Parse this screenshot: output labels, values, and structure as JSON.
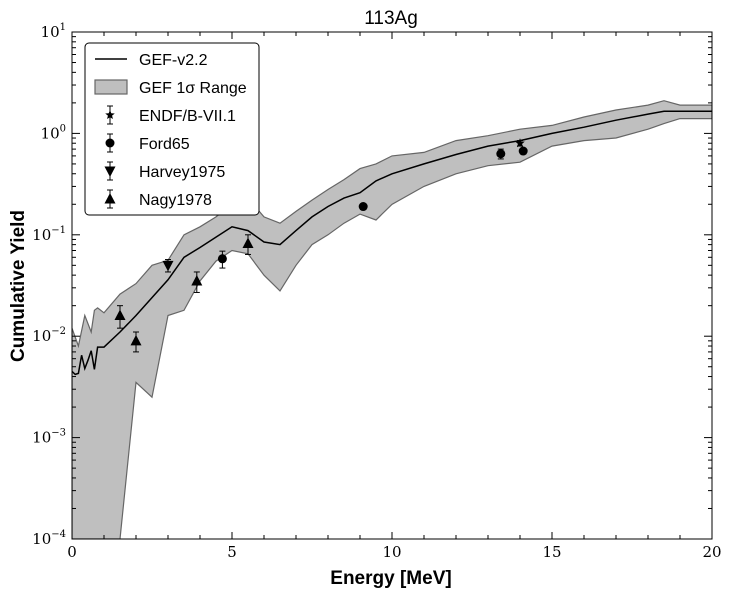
{
  "chart_data": {
    "type": "line",
    "title": "113Ag",
    "xlabel": "Energy [MeV]",
    "ylabel": "Cumulative Yield",
    "xlim": [
      0,
      20
    ],
    "ylim": [
      0.0001,
      10
    ],
    "yscale": "log",
    "grid": false,
    "legend_position": "top-left",
    "x_ticks": [
      0,
      5,
      10,
      15,
      20
    ],
    "y_ticks": [
      {
        "value": 0.0001,
        "base": "10",
        "exp": "−4"
      },
      {
        "value": 0.001,
        "base": "10",
        "exp": "−3"
      },
      {
        "value": 0.01,
        "base": "10",
        "exp": "−2"
      },
      {
        "value": 0.1,
        "base": "10",
        "exp": "−1"
      },
      {
        "value": 1,
        "base": "10",
        "exp": "0"
      },
      {
        "value": 10,
        "base": "10",
        "exp": "1"
      }
    ],
    "legend": [
      {
        "key": "gef",
        "label": "GEF-v2.2",
        "kind": "line"
      },
      {
        "key": "band",
        "label": "GEF 1σ Range",
        "kind": "band"
      },
      {
        "key": "endf",
        "label": "ENDF/B-VII.1",
        "kind": "star"
      },
      {
        "key": "ford",
        "label": "Ford65",
        "kind": "circle"
      },
      {
        "key": "harvey",
        "label": "Harvey1975",
        "kind": "tri-down"
      },
      {
        "key": "nagy",
        "label": "Nagy1978",
        "kind": "tri-up"
      }
    ],
    "series": [
      {
        "name": "GEF-v2.2",
        "kind": "line",
        "x": [
          0,
          0.1,
          0.2,
          0.3,
          0.4,
          0.5,
          0.6,
          0.7,
          0.8,
          1.0,
          1.5,
          2.0,
          2.5,
          3.0,
          3.5,
          4.0,
          4.5,
          5.0,
          5.5,
          6.0,
          6.5,
          7.0,
          7.5,
          8.0,
          8.5,
          9.0,
          9.5,
          10,
          11,
          12,
          13,
          14,
          15,
          16,
          17,
          18,
          18.5,
          19,
          20
        ],
        "y": [
          0.0045,
          0.0042,
          0.0043,
          0.0065,
          0.0048,
          0.0058,
          0.0072,
          0.0047,
          0.0078,
          0.0078,
          0.011,
          0.016,
          0.024,
          0.036,
          0.06,
          0.075,
          0.095,
          0.12,
          0.11,
          0.085,
          0.08,
          0.11,
          0.15,
          0.19,
          0.23,
          0.26,
          0.34,
          0.4,
          0.5,
          0.62,
          0.75,
          0.85,
          1.0,
          1.15,
          1.35,
          1.55,
          1.65,
          1.65,
          1.65
        ]
      },
      {
        "name": "GEF 1σ Range",
        "kind": "band",
        "x": [
          0,
          0.2,
          0.4,
          0.6,
          0.7,
          0.8,
          1.0,
          1.5,
          2.0,
          2.5,
          3.0,
          3.5,
          4.0,
          4.5,
          5.0,
          5.5,
          6.0,
          6.5,
          7.0,
          7.5,
          8.0,
          8.5,
          9.0,
          9.5,
          10,
          11,
          12,
          13,
          14,
          15,
          16,
          17,
          18,
          18.5,
          19,
          20
        ],
        "lower": [
          0.0001,
          0.0001,
          0.0001,
          0.0001,
          0.0001,
          0.0001,
          0.0001,
          0.0001,
          0.0035,
          0.0025,
          0.016,
          0.018,
          0.035,
          0.055,
          0.07,
          0.065,
          0.04,
          0.028,
          0.05,
          0.08,
          0.1,
          0.13,
          0.16,
          0.14,
          0.2,
          0.3,
          0.4,
          0.48,
          0.52,
          0.75,
          0.85,
          0.9,
          1.1,
          1.25,
          1.4,
          1.4
        ],
        "upper": [
          0.012,
          0.008,
          0.016,
          0.011,
          0.018,
          0.019,
          0.017,
          0.026,
          0.033,
          0.05,
          0.056,
          0.1,
          0.12,
          0.15,
          0.2,
          0.23,
          0.15,
          0.13,
          0.17,
          0.22,
          0.28,
          0.35,
          0.45,
          0.5,
          0.6,
          0.65,
          0.85,
          0.95,
          1.1,
          1.2,
          1.45,
          1.7,
          1.9,
          2.1,
          1.9,
          1.9
        ]
      },
      {
        "name": "ENDF/B-VII.1",
        "kind": "star",
        "points": [
          {
            "x": 14.0,
            "y": 0.8,
            "err": 0.05
          }
        ]
      },
      {
        "name": "Ford65",
        "kind": "circle",
        "points": [
          {
            "x": 4.7,
            "y": 0.058,
            "err": 0.011
          },
          {
            "x": 9.1,
            "y": 0.19,
            "err": 0.008
          },
          {
            "x": 13.4,
            "y": 0.63,
            "err": 0.07
          },
          {
            "x": 14.1,
            "y": 0.67,
            "err": 0.04
          }
        ]
      },
      {
        "name": "Harvey1975",
        "kind": "tri-down",
        "points": [
          {
            "x": 3.0,
            "y": 0.05,
            "err": 0.007
          }
        ]
      },
      {
        "name": "Nagy1978",
        "kind": "tri-up",
        "points": [
          {
            "x": 1.5,
            "y": 0.016,
            "err": 0.004
          },
          {
            "x": 2.0,
            "y": 0.009,
            "err": 0.002
          },
          {
            "x": 3.9,
            "y": 0.035,
            "err": 0.008
          },
          {
            "x": 5.5,
            "y": 0.082,
            "err": 0.018
          }
        ]
      }
    ]
  }
}
